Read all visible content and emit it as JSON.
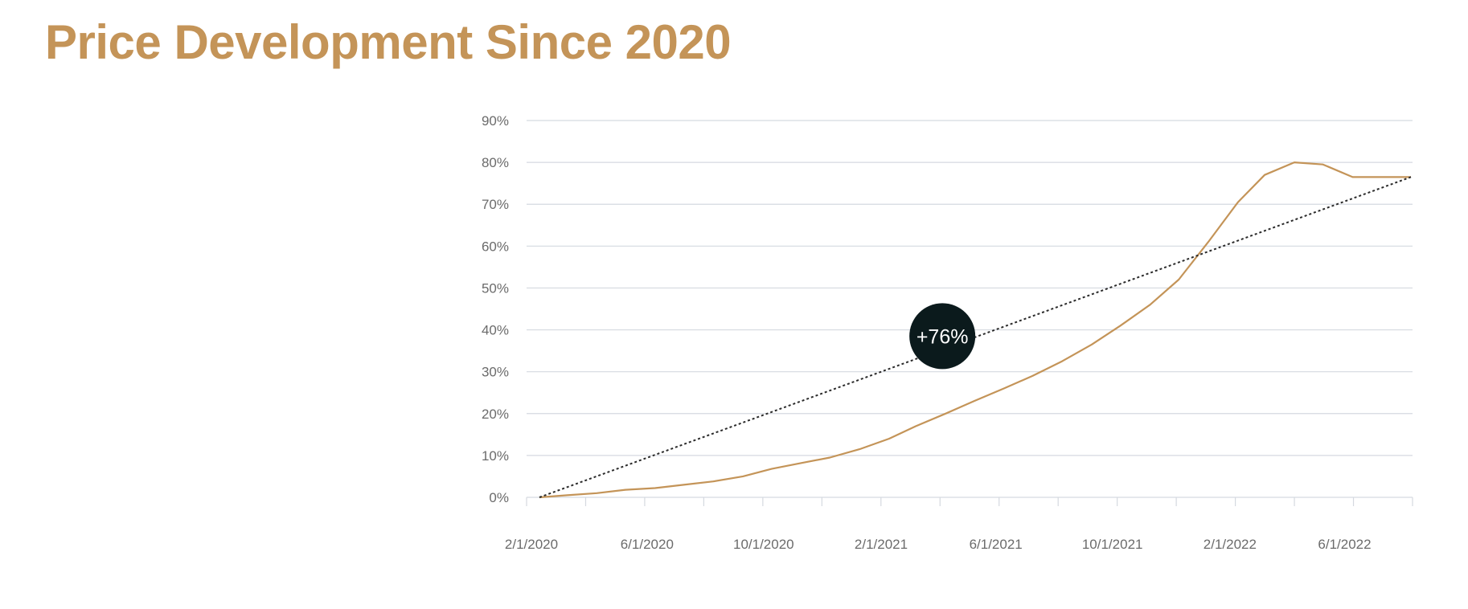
{
  "title": "Price Development Since 2020",
  "colors": {
    "title": "#c49458",
    "series": "#c49458",
    "trend": "#2b2b2b",
    "grid": "#d5d9e0",
    "badge": "#0b1a1c",
    "badge_text": "#ffffff"
  },
  "chart_data": {
    "type": "line",
    "title": "",
    "xlabel": "",
    "ylabel": "",
    "x_range": [
      "2020-02-01",
      "2022-08-01"
    ],
    "ylim": [
      0,
      90
    ],
    "y_ticks": [
      "0%",
      "10%",
      "20%",
      "30%",
      "40%",
      "50%",
      "60%",
      "70%",
      "80%",
      "90%"
    ],
    "y_tick_values": [
      0,
      10,
      20,
      30,
      40,
      50,
      60,
      70,
      80,
      90
    ],
    "x_tick_labels": [
      "2/1/2020",
      "6/1/2020",
      "10/1/2020",
      "2/1/2021",
      "6/1/2021",
      "10/1/2021",
      "2/1/2022",
      "6/1/2022"
    ],
    "x_tick_dates": [
      "2020-02-01",
      "2020-06-01",
      "2020-10-01",
      "2021-02-01",
      "2021-06-01",
      "2021-10-01",
      "2022-02-01",
      "2022-06-01"
    ],
    "grid": true,
    "legend": "none",
    "series": [
      {
        "x": [
          "2020-02-01",
          "2020-03-01",
          "2020-04-01",
          "2020-05-01",
          "2020-06-01",
          "2020-07-01",
          "2020-08-01",
          "2020-09-01",
          "2020-10-01",
          "2020-11-01",
          "2020-12-01",
          "2021-01-01",
          "2021-02-01",
          "2021-03-01",
          "2021-04-01",
          "2021-05-01",
          "2021-06-01",
          "2021-07-01",
          "2021-08-01",
          "2021-09-01",
          "2021-10-01",
          "2021-11-01",
          "2021-12-01",
          "2022-01-01",
          "2022-02-01",
          "2022-03-01",
          "2022-04-01",
          "2022-05-01",
          "2022-06-01",
          "2022-07-01",
          "2022-08-01"
        ],
        "values": [
          0,
          0.5,
          1,
          1.8,
          2.2,
          3,
          3.8,
          5,
          6.8,
          8.2,
          9.5,
          11.5,
          14,
          17,
          20,
          23,
          26,
          29,
          32.5,
          36.5,
          41,
          46,
          52,
          61,
          70.5,
          77,
          80,
          79.5,
          76.5,
          76.5,
          76.5
        ]
      },
      {
        "type": "trendline",
        "x": [
          "2020-02-01",
          "2022-08-01"
        ],
        "values": [
          0,
          76.5
        ]
      }
    ],
    "annotations": [
      {
        "text": "+76%",
        "x": "2021-04-01",
        "y": 38.5
      }
    ]
  }
}
